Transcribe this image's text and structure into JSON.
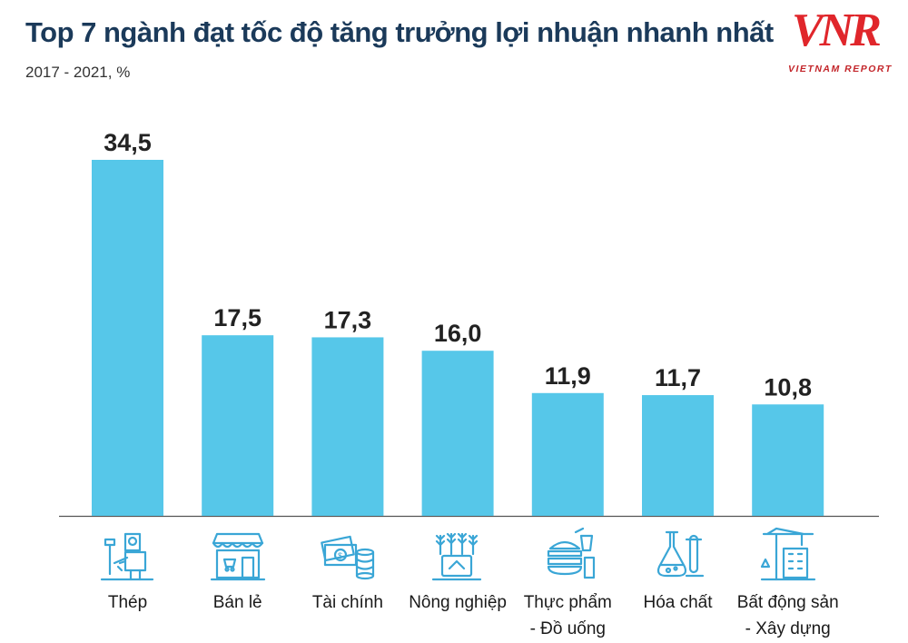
{
  "header": {
    "title": "Top 7 ngành đạt tốc độ tăng trưởng lợi nhuận nhanh nhất",
    "subtitle": "2017 - 2021, %"
  },
  "logo": {
    "mark": "VNR",
    "text": "VIETNAM REPORT"
  },
  "colors": {
    "bar": "#56c7e9",
    "icon": "#3aa6d6",
    "title": "#1b3a5a",
    "value": "#222222"
  },
  "chart_data": {
    "type": "bar",
    "title": "Top 7 ngành đạt tốc độ tăng trưởng lợi nhuận nhanh nhất",
    "subtitle": "2017 - 2021, %",
    "categories": [
      "Thép",
      "Bán lẻ",
      "Tài chính",
      "Nông nghiệp",
      "Thực phẩm\n- Đồ uống",
      "Hóa chất",
      "Bất động sản\n- Xây dựng"
    ],
    "values": [
      34.5,
      17.5,
      17.3,
      16.0,
      11.9,
      11.7,
      10.8
    ],
    "value_labels": [
      "34,5",
      "17,5",
      "17,3",
      "16,0",
      "11,9",
      "11,7",
      "10,8"
    ],
    "icons": [
      "welder-icon",
      "storefront-icon",
      "money-icon",
      "wheat-icon",
      "burger-drink-icon",
      "flask-icon",
      "crane-building-icon"
    ],
    "ylim": [
      0,
      34.5
    ],
    "grid": false,
    "legend": "none"
  }
}
